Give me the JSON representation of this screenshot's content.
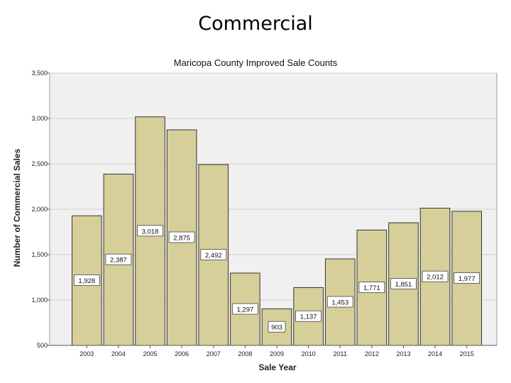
{
  "slide": {
    "title": "Commercial"
  },
  "chart_data": {
    "type": "bar",
    "title": "Maricopa County Improved Sale Counts",
    "xlabel": "Sale Year",
    "ylabel": "Number of Commercial Sales",
    "categories": [
      "2003",
      "2004",
      "2005",
      "2006",
      "2007",
      "2008",
      "2009",
      "2010",
      "2011",
      "2012",
      "2013",
      "2014",
      "2015"
    ],
    "values": [
      1928,
      2387,
      3018,
      2875,
      2492,
      1297,
      903,
      1137,
      1453,
      1771,
      1851,
      2012,
      1977
    ],
    "data_labels": [
      "1,928",
      "2,387",
      "3,018",
      "2,875",
      "2,492",
      "1,297",
      "903",
      "1,137",
      "1,453",
      "1,771",
      "1,851",
      "2,012",
      "1,977"
    ],
    "ylim": [
      500,
      3500
    ],
    "yticks": [
      500,
      1000,
      1500,
      2000,
      2500,
      3000,
      3500
    ],
    "ytick_labels": [
      "500",
      "1,000",
      "1,500",
      "2,000",
      "2,500",
      "3,000",
      "3,500"
    ],
    "grid": true,
    "colors": {
      "bar": "#d6cf9a",
      "bar_edge": "#333333",
      "plot_bg": "#f0f0f0",
      "grid": "#cfcfcf"
    }
  }
}
